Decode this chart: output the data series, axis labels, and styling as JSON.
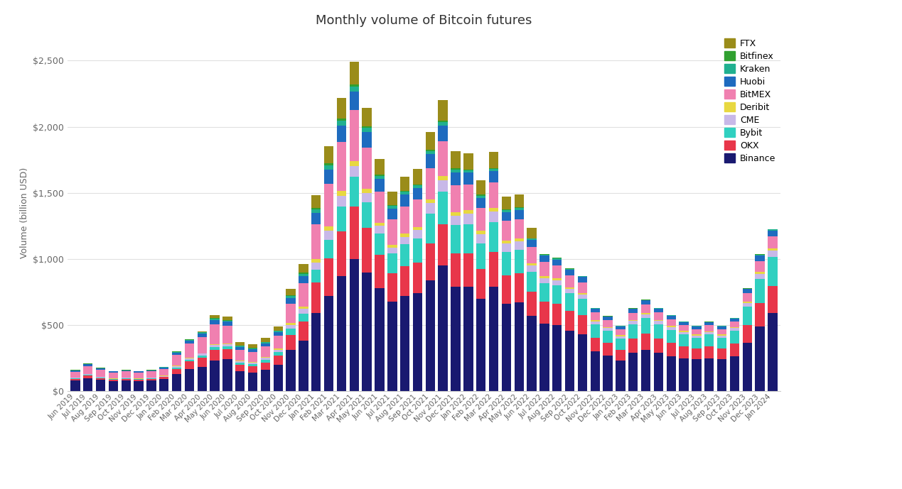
{
  "title": "Monthly volume of Bitcoin futures",
  "ylabel": "Volume (billion USD)",
  "background_color": "#ffffff",
  "grid_color": "#e0e0e0",
  "ylim": [
    0,
    2700
  ],
  "yticks": [
    0,
    500,
    1000,
    1500,
    2000,
    2500
  ],
  "ytick_labels": [
    "$0",
    "$500",
    "$1,000",
    "$1,500",
    "$2,000",
    "$2,500"
  ],
  "exchanges": [
    "Binance",
    "OKX",
    "Bybit",
    "CME",
    "Deribit",
    "BitMEX",
    "Huobi",
    "Kraken",
    "Bitfinex",
    "FTX"
  ],
  "colors": {
    "Binance": "#191970",
    "OKX": "#e8364a",
    "Bybit": "#30d0c0",
    "CME": "#c8b8e8",
    "Deribit": "#e8d840",
    "BitMEX": "#f080b0",
    "Huobi": "#1e6bbf",
    "Kraken": "#20b090",
    "Bitfinex": "#30a030",
    "FTX": "#9a8c1a"
  },
  "months": [
    "Jun 2019",
    "Jul 2019",
    "Aug 2019",
    "Sep 2019",
    "Oct 2019",
    "Nov 2019",
    "Dec 2019",
    "Jan 2020",
    "Feb 2020",
    "Mar 2020",
    "Apr 2020",
    "May 2020",
    "Jun 2020",
    "Jul 2020",
    "Aug 2020",
    "Sep 2020",
    "Oct 2020",
    "Nov 2020",
    "Dec 2020",
    "Jan 2021",
    "Feb 2021",
    "Mar 2021",
    "Apr 2021",
    "May 2021",
    "Jun 2021",
    "Jul 2021",
    "Aug 2021",
    "Sep 2021",
    "Oct 2021",
    "Nov 2021",
    "Dec 2021",
    "Jan 2022",
    "Feb 2022",
    "Mar 2022",
    "Apr 2022",
    "May 2022",
    "Jun 2022",
    "Jul 2022",
    "Aug 2022",
    "Sep 2022",
    "Oct 2022",
    "Nov 2022",
    "Dec 2022",
    "Jan 2023",
    "Feb 2023",
    "Mar 2023",
    "Apr 2023",
    "May 2023",
    "Jun 2023",
    "Jul 2023",
    "Aug 2023",
    "Sep 2023",
    "Oct 2023",
    "Nov 2023",
    "Dec 2023",
    "Jan 2024"
  ],
  "data": {
    "Binance": [
      80,
      100,
      85,
      75,
      80,
      75,
      80,
      90,
      130,
      170,
      185,
      230,
      240,
      150,
      140,
      160,
      200,
      310,
      380,
      590,
      720,
      870,
      1000,
      900,
      780,
      680,
      720,
      740,
      840,
      950,
      790,
      790,
      700,
      790,
      660,
      670,
      570,
      510,
      500,
      460,
      430,
      300,
      270,
      230,
      290,
      310,
      290,
      265,
      250,
      240,
      250,
      240,
      265,
      365,
      490,
      590
    ],
    "OKX": [
      15,
      20,
      15,
      12,
      14,
      13,
      14,
      16,
      40,
      55,
      70,
      85,
      80,
      50,
      50,
      58,
      72,
      115,
      145,
      230,
      285,
      340,
      395,
      335,
      250,
      210,
      225,
      235,
      280,
      310,
      255,
      255,
      225,
      265,
      215,
      220,
      180,
      165,
      160,
      150,
      145,
      105,
      98,
      85,
      110,
      125,
      110,
      100,
      90,
      82,
      88,
      82,
      95,
      135,
      175,
      205
    ],
    "Bybit": [
      3,
      4,
      3,
      3,
      3,
      3,
      3,
      4,
      7,
      10,
      14,
      20,
      20,
      16,
      16,
      20,
      27,
      48,
      62,
      100,
      140,
      185,
      225,
      195,
      165,
      150,
      165,
      180,
      225,
      250,
      210,
      220,
      195,
      225,
      180,
      180,
      155,
      140,
      140,
      130,
      125,
      98,
      90,
      82,
      105,
      120,
      106,
      98,
      90,
      82,
      90,
      82,
      96,
      138,
      182,
      220
    ],
    "CME": [
      3,
      4,
      4,
      4,
      4,
      4,
      4,
      5,
      11,
      14,
      14,
      16,
      14,
      11,
      11,
      14,
      16,
      28,
      35,
      55,
      70,
      84,
      85,
      70,
      56,
      48,
      56,
      62,
      77,
      84,
      70,
      77,
      70,
      77,
      62,
      62,
      48,
      42,
      40,
      35,
      31,
      25,
      21,
      19,
      25,
      28,
      25,
      22,
      19,
      18,
      19,
      18,
      21,
      30,
      42,
      49
    ],
    "Deribit": [
      2,
      3,
      3,
      3,
      3,
      3,
      3,
      3,
      4,
      5,
      5,
      7,
      7,
      5,
      5,
      7,
      8,
      14,
      17,
      25,
      31,
      35,
      35,
      31,
      25,
      21,
      25,
      25,
      31,
      35,
      28,
      28,
      25,
      28,
      22,
      22,
      17,
      14,
      14,
      12,
      11,
      8,
      7,
      7,
      8,
      10,
      8,
      8,
      7,
      7,
      7,
      7,
      7,
      11,
      14,
      17
    ],
    "BitMEX": [
      45,
      60,
      52,
      45,
      45,
      44,
      45,
      52,
      82,
      105,
      120,
      148,
      134,
      82,
      75,
      82,
      97,
      148,
      180,
      265,
      325,
      370,
      385,
      310,
      235,
      192,
      207,
      207,
      236,
      259,
      207,
      192,
      170,
      192,
      148,
      148,
      119,
      105,
      97,
      90,
      82,
      59,
      52,
      45,
      56,
      62,
      56,
      52,
      44,
      41,
      44,
      41,
      44,
      62,
      82,
      89
    ],
    "Huobi": [
      7,
      12,
      9,
      7,
      7,
      7,
      7,
      9,
      18,
      22,
      27,
      33,
      30,
      21,
      19,
      22,
      27,
      42,
      52,
      82,
      105,
      126,
      141,
      119,
      97,
      82,
      90,
      90,
      105,
      120,
      97,
      90,
      78,
      87,
      69,
      69,
      54,
      48,
      45,
      42,
      39,
      28,
      25,
      22,
      28,
      31,
      28,
      25,
      22,
      21,
      22,
      21,
      22,
      31,
      42,
      45
    ],
    "Kraken": [
      3,
      4,
      3,
      3,
      3,
      3,
      3,
      3,
      6,
      7,
      9,
      10,
      10,
      7,
      7,
      7,
      9,
      15,
      18,
      27,
      33,
      37,
      37,
      30,
      22,
      18,
      19,
      19,
      24,
      27,
      21,
      19,
      16,
      18,
      15,
      15,
      10,
      9,
      9,
      7,
      7,
      4,
      4,
      3,
      4,
      4,
      4,
      3,
      3,
      3,
      3,
      3,
      3,
      4,
      7,
      9
    ],
    "Bitfinex": [
      2,
      2,
      2,
      2,
      2,
      2,
      2,
      2,
      3,
      3,
      3,
      4,
      4,
      3,
      3,
      3,
      3,
      6,
      7,
      10,
      13,
      15,
      15,
      12,
      9,
      7,
      7,
      7,
      9,
      10,
      9,
      7,
      7,
      7,
      6,
      6,
      4,
      3,
      3,
      3,
      3,
      2,
      2,
      2,
      2,
      2,
      2,
      2,
      2,
      2,
      2,
      2,
      2,
      2,
      3,
      3
    ],
    "FTX": [
      0,
      0,
      0,
      0,
      0,
      0,
      0,
      0,
      0,
      0,
      7,
      21,
      28,
      28,
      28,
      28,
      28,
      50,
      64,
      100,
      130,
      158,
      172,
      143,
      115,
      100,
      107,
      115,
      136,
      158,
      129,
      122,
      107,
      122,
      97,
      97,
      79,
      0,
      0,
      0,
      0,
      0,
      0,
      0,
      0,
      0,
      0,
      0,
      0,
      0,
      0,
      0,
      0,
      0,
      0,
      0
    ]
  }
}
